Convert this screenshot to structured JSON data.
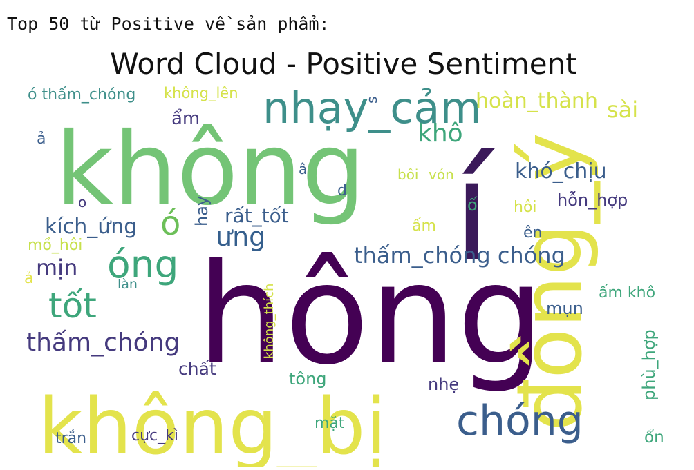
{
  "output": {
    "header_text": "Top 50 từ Positive về sản phẩm:"
  },
  "chart_data": {
    "type": "wordcloud",
    "title": "Word Cloud - Positive Sentiment",
    "colormap": "viridis",
    "words": [
      {
        "text": "hông",
        "weight": 1.0,
        "color": "#440154",
        "rotate": false
      },
      {
        "text": "không",
        "weight": 0.93,
        "color": "#74c476",
        "rotate": false
      },
      {
        "text": "không_bị",
        "weight": 0.81,
        "color": "#e3e34c",
        "rotate": false
      },
      {
        "text": "í",
        "weight": 0.78,
        "color": "#3b1a5a",
        "rotate": false
      },
      {
        "text": "đồng_ý",
        "weight": 0.74,
        "color": "#e3e34c",
        "rotate": true
      },
      {
        "text": "nhạy_cảm",
        "weight": 0.45,
        "color": "#3e8f8a",
        "rotate": false
      },
      {
        "text": "chóng",
        "weight": 0.43,
        "color": "#3b5e8c",
        "rotate": false
      },
      {
        "text": "tốt",
        "weight": 0.4,
        "color": "#3ea67b",
        "rotate": false
      },
      {
        "text": "óng",
        "weight": 0.38,
        "color": "#3ea67b",
        "rotate": false
      },
      {
        "text": "thấm_chóng",
        "weight": 0.3,
        "color": "#453a7e",
        "rotate": false
      },
      {
        "text": "ó",
        "weight": 0.3,
        "color": "#6cbf58",
        "rotate": false
      },
      {
        "text": "ưng",
        "weight": 0.26,
        "color": "#355f8d",
        "rotate": false
      },
      {
        "text": "khô",
        "weight": 0.24,
        "color": "#3ea67b",
        "rotate": false
      },
      {
        "text": "hoàn_thành",
        "weight": 0.24,
        "color": "#d5e24a",
        "rotate": false
      },
      {
        "text": "thấm_chóng chóng",
        "weight": 0.24,
        "color": "#3b5e8c",
        "rotate": false
      },
      {
        "text": "kích_ứng",
        "weight": 0.23,
        "color": "#3b5e8c",
        "rotate": false
      },
      {
        "text": "rất_tốt",
        "weight": 0.22,
        "color": "#3b5e8c",
        "rotate": false
      },
      {
        "text": "sài",
        "weight": 0.22,
        "color": "#d5e24a",
        "rotate": false
      },
      {
        "text": "mịn",
        "weight": 0.22,
        "color": "#453a7e",
        "rotate": false
      },
      {
        "text": "khó_chịu",
        "weight": 0.21,
        "color": "#3b5e8c",
        "rotate": false
      },
      {
        "text": "ổn",
        "weight": 0.18,
        "color": "#3ea67b",
        "rotate": false
      },
      {
        "text": "chất",
        "weight": 0.18,
        "color": "#453a7e",
        "rotate": false
      },
      {
        "text": "ó thấm_chóng",
        "weight": 0.17,
        "color": "#3e8f8a",
        "rotate": false
      },
      {
        "text": "ẩm",
        "weight": 0.17,
        "color": "#453a7e",
        "rotate": false
      },
      {
        "text": "hỗn_hợp",
        "weight": 0.16,
        "color": "#453a7e",
        "rotate": false
      },
      {
        "text": "phù_hợp",
        "weight": 0.16,
        "color": "#3ea67b",
        "rotate": true
      },
      {
        "text": "ấm khô",
        "weight": 0.16,
        "color": "#3ea67b",
        "rotate": false
      },
      {
        "text": "tông",
        "weight": 0.16,
        "color": "#3ea67b",
        "rotate": false
      },
      {
        "text": "nhẹ",
        "weight": 0.16,
        "color": "#453a7e",
        "rotate": false
      },
      {
        "text": "mụn",
        "weight": 0.16,
        "color": "#3b5e8c",
        "rotate": false
      },
      {
        "text": "hay",
        "weight": 0.15,
        "color": "#3b5e8c",
        "rotate": true
      },
      {
        "text": "ấm",
        "weight": 0.15,
        "color": "#d5e24a",
        "rotate": false
      },
      {
        "text": "ố",
        "weight": 0.15,
        "color": "#3ea67b",
        "rotate": false
      },
      {
        "text": "hôi",
        "weight": 0.15,
        "color": "#d5e24a",
        "rotate": false
      },
      {
        "text": "ên",
        "weight": 0.15,
        "color": "#3b5e8c",
        "rotate": false
      },
      {
        "text": "mồ_hôi",
        "weight": 0.15,
        "color": "#c7e04c",
        "rotate": false
      },
      {
        "text": "trắn",
        "weight": 0.15,
        "color": "#3b5e8c",
        "rotate": false
      },
      {
        "text": "cực_kì",
        "weight": 0.15,
        "color": "#453a7e",
        "rotate": false
      },
      {
        "text": "mặt",
        "weight": 0.15,
        "color": "#3ea67b",
        "rotate": false
      },
      {
        "text": "không_lên",
        "weight": 0.14,
        "color": "#d5e24a",
        "rotate": false
      },
      {
        "text": "không_thích",
        "weight": 0.14,
        "color": "#d5e24a",
        "rotate": true
      },
      {
        "text": "bôi",
        "weight": 0.13,
        "color": "#c7e04c",
        "rotate": false
      },
      {
        "text": "vón",
        "weight": 0.13,
        "color": "#c7e04c",
        "rotate": false
      },
      {
        "text": "làn",
        "weight": 0.13,
        "color": "#3e8f8a",
        "rotate": false
      },
      {
        "text": "d",
        "weight": 0.13,
        "color": "#3b5e8c",
        "rotate": false
      },
      {
        "text": "â",
        "weight": 0.13,
        "color": "#3b5e8c",
        "rotate": false
      },
      {
        "text": "s",
        "weight": 0.13,
        "color": "#3b5e8c",
        "rotate": true
      },
      {
        "text": "ả",
        "weight": 0.13,
        "color": "#3b5e8c",
        "rotate": false
      },
      {
        "text": "o",
        "weight": 0.13,
        "color": "#453a7e",
        "rotate": false
      },
      {
        "text": "ả",
        "weight": 0.13,
        "color": "#e3e34c",
        "rotate": false
      }
    ]
  }
}
